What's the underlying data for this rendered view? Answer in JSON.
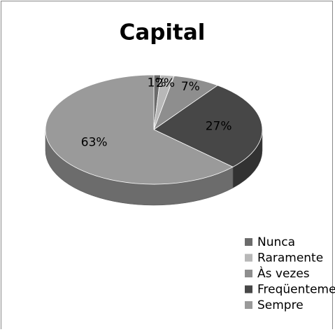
{
  "chart_data": {
    "type": "pie",
    "title": "Capital",
    "categories": [
      "Nunca",
      "Raramente",
      "Às vezes",
      "Freqüentemente",
      "Sempre"
    ],
    "values": [
      1,
      2,
      7,
      27,
      63
    ],
    "value_labels": [
      "1%",
      "2%",
      "7%",
      "27%",
      "63%"
    ],
    "colors": [
      "#6b6b6b",
      "#b8b8b8",
      "#8e8e8e",
      "#474747",
      "#9a9a9a"
    ],
    "legend": "bottom-right"
  }
}
